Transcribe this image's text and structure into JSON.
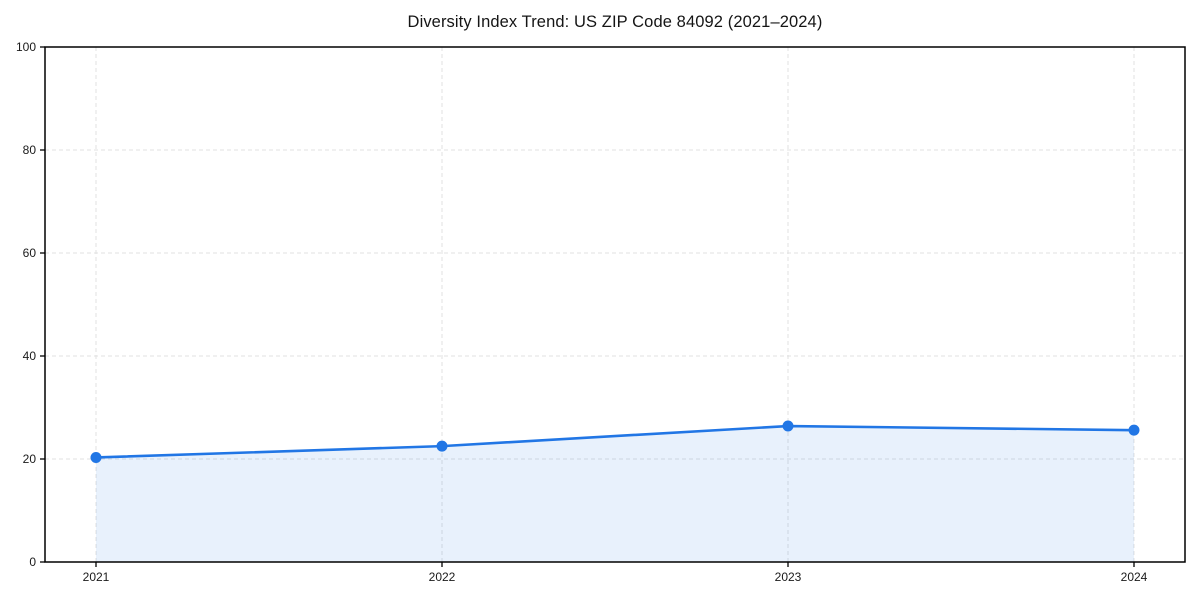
{
  "chart_data": {
    "type": "line",
    "title": "Diversity Index Trend: US ZIP Code 84092 (2021–2024)",
    "x": [
      2021,
      2022,
      2023,
      2024
    ],
    "xticklabels": [
      "2021",
      "2022",
      "2023",
      "2024"
    ],
    "series": [
      {
        "name": "Diversity Index",
        "values": [
          20.3,
          22.5,
          26.4,
          25.6
        ]
      }
    ],
    "xlabel": "",
    "ylabel": "",
    "ylim": [
      0,
      100
    ],
    "yticks": [
      0,
      20,
      40,
      60,
      80,
      100
    ],
    "grid": true,
    "grid_style": "dashed",
    "legend": "none",
    "line_color": "#2176e5",
    "marker_color": "#2176e5",
    "fill_color": "rgba(33, 118, 229, 0.10)",
    "grid_color": "#e0e0e0",
    "spine_color": "#000000"
  }
}
